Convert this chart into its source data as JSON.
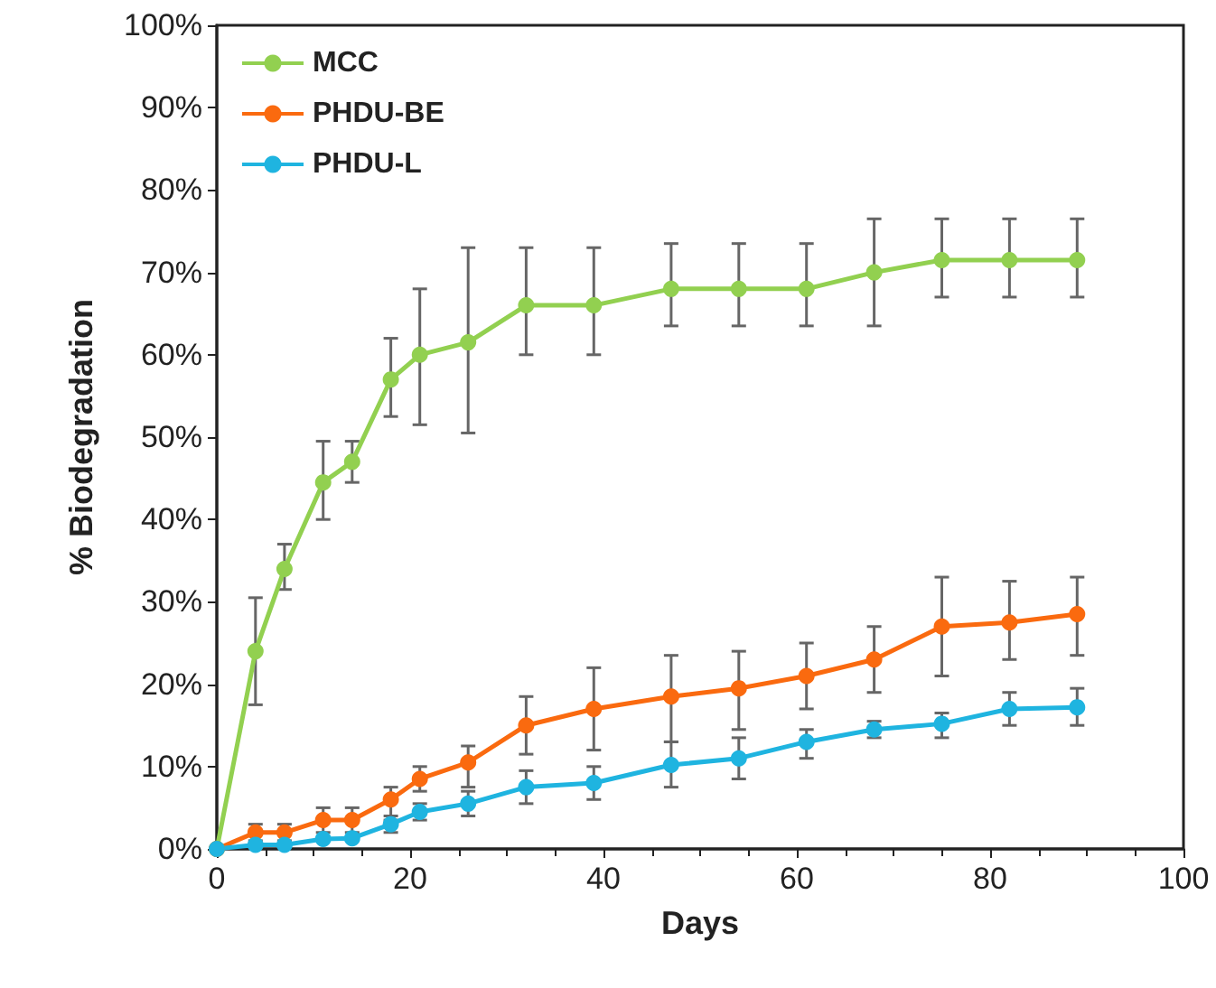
{
  "chart_data": {
    "type": "line",
    "xlabel": "Days",
    "ylabel": "% Biodegradation",
    "x": [
      0,
      4,
      7,
      11,
      14,
      18,
      21,
      26,
      32,
      39,
      47,
      54,
      61,
      68,
      75,
      82,
      89
    ],
    "series": [
      {
        "name": "MCC",
        "color": "#92d050",
        "values": [
          0,
          24,
          34,
          44.5,
          47,
          57,
          60,
          61.5,
          66,
          66,
          68,
          68,
          68,
          70,
          71.5,
          71.5,
          71.5
        ],
        "errors": [
          null,
          [
            17.5,
            30.5
          ],
          [
            31.5,
            37
          ],
          [
            40,
            49.5
          ],
          [
            44.5,
            49.5
          ],
          [
            52.5,
            62
          ],
          [
            51.5,
            68
          ],
          [
            50.5,
            73
          ],
          [
            60,
            73
          ],
          [
            60,
            73
          ],
          [
            63.5,
            73.5
          ],
          [
            63.5,
            73.5
          ],
          [
            63.5,
            73.5
          ],
          [
            63.5,
            76.5
          ],
          [
            67,
            76.5
          ],
          [
            67,
            76.5
          ],
          [
            67,
            76.5
          ]
        ]
      },
      {
        "name": "PHDU-BE",
        "color": "#fa6a0f",
        "values": [
          0,
          2,
          2,
          3.5,
          3.5,
          6,
          8.5,
          10.5,
          15,
          17,
          18.5,
          19.5,
          21,
          23,
          27,
          27.5,
          28.5
        ],
        "errors": [
          null,
          [
            1,
            3
          ],
          [
            1,
            3
          ],
          [
            2,
            5
          ],
          [
            2,
            5
          ],
          [
            4,
            7.5
          ],
          [
            7,
            10
          ],
          [
            7.5,
            12.5
          ],
          [
            11.5,
            18.5
          ],
          [
            12,
            22
          ],
          [
            13,
            23.5
          ],
          [
            14.5,
            24
          ],
          [
            17,
            25
          ],
          [
            19,
            27
          ],
          [
            21,
            33
          ],
          [
            23,
            32.5
          ],
          [
            23.5,
            33
          ]
        ]
      },
      {
        "name": "PHDU-L",
        "color": "#1fb4e0",
        "values": [
          0,
          0.5,
          0.5,
          1.2,
          1.3,
          3,
          4.5,
          5.5,
          7.5,
          8,
          10.2,
          11,
          13,
          14.5,
          15.2,
          17,
          17.2
        ],
        "errors": [
          null,
          null,
          null,
          null,
          null,
          [
            2,
            3.5
          ],
          [
            3.5,
            5.5
          ],
          [
            4,
            7
          ],
          [
            5.5,
            9.5
          ],
          [
            6,
            10
          ],
          [
            7.5,
            13
          ],
          [
            8.5,
            13.5
          ],
          [
            11,
            14.5
          ],
          [
            13.5,
            15.5
          ],
          [
            13.5,
            16.5
          ],
          [
            15,
            19
          ],
          [
            15,
            19.5
          ]
        ]
      }
    ],
    "xlim": [
      0,
      100
    ],
    "xticks": [
      0,
      20,
      40,
      60,
      80,
      100
    ],
    "ylim": [
      0,
      100
    ],
    "yticks": [
      {
        "value": 0,
        "label": "0%"
      },
      {
        "value": 10,
        "label": "10%"
      },
      {
        "value": 20,
        "label": "20%"
      },
      {
        "value": 30,
        "label": "30%"
      },
      {
        "value": 40,
        "label": "40%"
      },
      {
        "value": 50,
        "label": "50%"
      },
      {
        "value": 60,
        "label": "60%"
      },
      {
        "value": 70,
        "label": "70%"
      },
      {
        "value": 80,
        "label": "80%"
      },
      {
        "value": 90,
        "label": "90%"
      },
      {
        "value": 100,
        "label": "100%"
      }
    ],
    "grid": false,
    "legend": "top left",
    "marker": "circle",
    "line_style": "solid"
  }
}
